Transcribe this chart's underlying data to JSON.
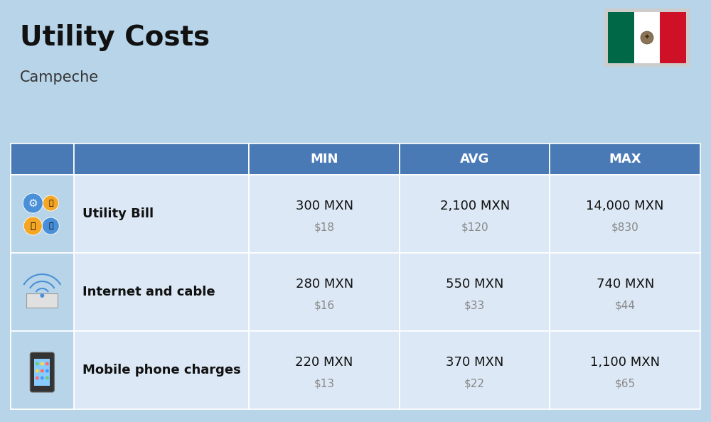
{
  "title": "Utility Costs",
  "subtitle": "Campeche",
  "background_color": "#b8d4e8",
  "header_bg_color": "#4a7ab5",
  "header_text_color": "#ffffff",
  "row_bg_even": "#dce8f5",
  "row_bg_odd": "#dce8f5",
  "icon_col_bg": "#b8d4e8",
  "cell_text_color": "#111111",
  "usd_text_color": "#888888",
  "col_headers": [
    "MIN",
    "AVG",
    "MAX"
  ],
  "rows": [
    {
      "label": "Utility Bill",
      "icon": "utility",
      "min_mxn": "300 MXN",
      "min_usd": "$18",
      "avg_mxn": "2,100 MXN",
      "avg_usd": "$120",
      "max_mxn": "14,000 MXN",
      "max_usd": "$830"
    },
    {
      "label": "Internet and cable",
      "icon": "internet",
      "min_mxn": "280 MXN",
      "min_usd": "$16",
      "avg_mxn": "550 MXN",
      "avg_usd": "$33",
      "max_mxn": "740 MXN",
      "max_usd": "$44"
    },
    {
      "label": "Mobile phone charges",
      "icon": "mobile",
      "min_mxn": "220 MXN",
      "min_usd": "$13",
      "avg_mxn": "370 MXN",
      "avg_usd": "$22",
      "max_mxn": "1,100 MXN",
      "max_usd": "$65"
    }
  ],
  "flag_green": "#006847",
  "flag_white": "#FFFFFF",
  "flag_red": "#CE1126"
}
